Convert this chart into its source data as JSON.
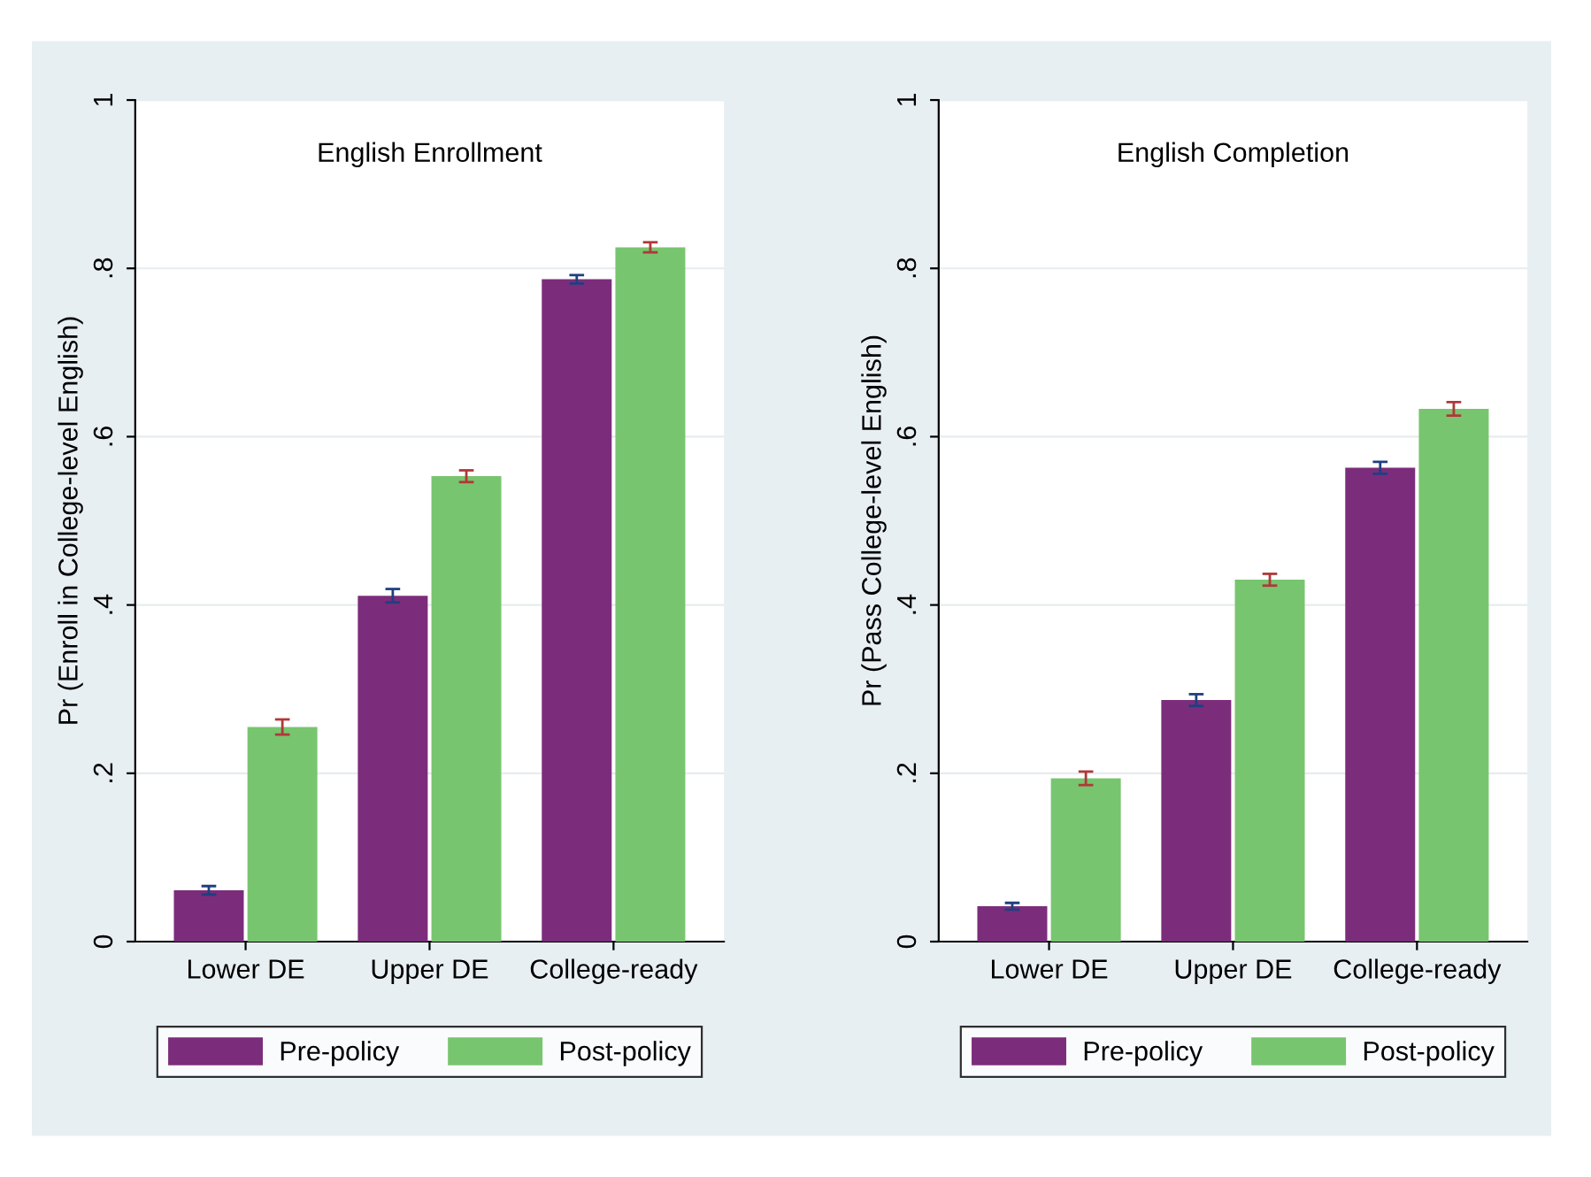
{
  "chart_data": [
    {
      "type": "bar",
      "title": "English Enrollment",
      "ylabel": "Pr (Enroll in College-level English)",
      "categories": [
        "Lower DE",
        "Upper DE",
        "College-ready"
      ],
      "series": [
        {
          "name": "Pre-policy",
          "color": "#7b2d7b",
          "values": [
            0.061,
            0.411,
            0.787
          ],
          "errors": [
            0.005,
            0.008,
            0.005
          ]
        },
        {
          "name": "Post-policy",
          "color": "#78c56f",
          "values": [
            0.255,
            0.553,
            0.825
          ],
          "errors": [
            0.009,
            0.007,
            0.006
          ]
        }
      ],
      "ylim": [
        0,
        1
      ],
      "yticks": [
        0,
        {
          "value": 0.2,
          "label": ".2"
        },
        {
          "value": 0.4,
          "label": ".4"
        },
        {
          "value": 0.6,
          "label": ".6"
        },
        {
          "value": 0.8,
          "label": ".8"
        },
        1
      ],
      "grid": "y",
      "legend": "bottom"
    },
    {
      "type": "bar",
      "title": "English Completion",
      "ylabel": "Pr (Pass College-level English)",
      "categories": [
        "Lower DE",
        "Upper DE",
        "College-ready"
      ],
      "series": [
        {
          "name": "Pre-policy",
          "color": "#7b2d7b",
          "values": [
            0.042,
            0.287,
            0.563
          ],
          "errors": [
            0.004,
            0.007,
            0.007
          ]
        },
        {
          "name": "Post-policy",
          "color": "#78c56f",
          "values": [
            0.194,
            0.43,
            0.633
          ],
          "errors": [
            0.008,
            0.007,
            0.008
          ]
        }
      ],
      "ylim": [
        0,
        1
      ],
      "yticks": [
        0,
        {
          "value": 0.2,
          "label": ".2"
        },
        {
          "value": 0.4,
          "label": ".4"
        },
        {
          "value": 0.6,
          "label": ".6"
        },
        {
          "value": 0.8,
          "label": ".8"
        },
        1
      ],
      "grid": "y",
      "legend": "bottom"
    }
  ]
}
